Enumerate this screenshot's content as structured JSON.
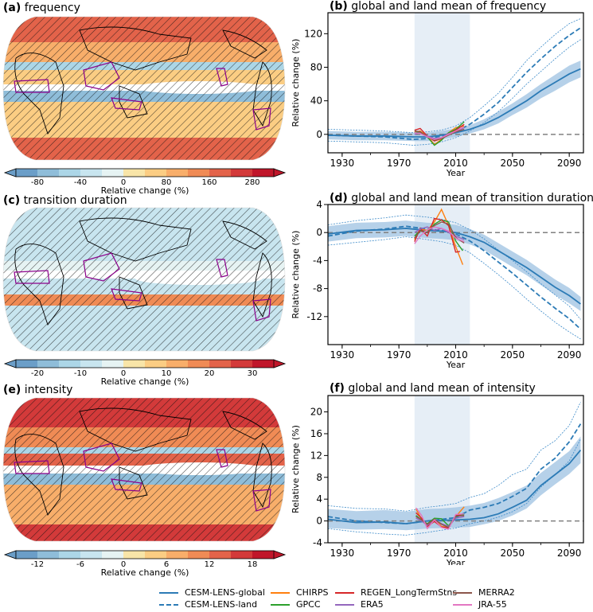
{
  "maps": [
    {
      "id": "a",
      "label": "(a)",
      "title": "frequency",
      "colorbar": {
        "ticks": [
          "-80",
          "-40",
          "0",
          "80",
          "160",
          "280"
        ],
        "label": "Relative change (%)"
      },
      "dominant": "warm"
    },
    {
      "id": "c",
      "label": "(c)",
      "title": "transition duration",
      "colorbar": {
        "ticks": [
          "-20",
          "-10",
          "0",
          "10",
          "20",
          "30"
        ],
        "label": "Relative change (%)"
      },
      "dominant": "cool"
    },
    {
      "id": "e",
      "label": "(e)",
      "title": "intensity",
      "colorbar": {
        "ticks": [
          "-12",
          "-6",
          "0",
          "6",
          "12",
          "18"
        ],
        "label": "Relative change (%)"
      },
      "dominant": "hot"
    }
  ],
  "colorbar_colors": [
    "#6b9ec8",
    "#8fbdd9",
    "#acd6e7",
    "#c8e5ef",
    "#e6f3f3",
    "#f8e5a8",
    "#fbcd83",
    "#f8ae6a",
    "#f08b55",
    "#e3634a",
    "#d33a3a",
    "#c0162a"
  ],
  "legend": [
    {
      "name": "CESM-LENS-global",
      "color": "#2c7bb6",
      "style": "solid"
    },
    {
      "name": "CESM-LENS-land",
      "color": "#2c7bb6",
      "style": "dashed"
    },
    {
      "name": "CHIRPS",
      "color": "#ff7f0e",
      "style": "solid"
    },
    {
      "name": "GPCC",
      "color": "#2ca02c",
      "style": "solid"
    },
    {
      "name": "REGEN_LongTermStns",
      "color": "#d62728",
      "style": "solid"
    },
    {
      "name": "ERA5",
      "color": "#9467bd",
      "style": "solid"
    },
    {
      "name": "MERRA2",
      "color": "#8c564b",
      "style": "solid"
    },
    {
      "name": "JRA-55",
      "color": "#e377c2",
      "style": "solid"
    }
  ],
  "chart_data": [
    {
      "type": "line",
      "panel": "(b)",
      "title": "global and land mean of frequency",
      "xlabel": "Year",
      "ylabel": "Relative change (%)",
      "xlim": [
        1920,
        2100
      ],
      "ylim": [
        -22,
        145
      ],
      "xticks": [
        1930,
        1970,
        2010,
        2050,
        2090
      ],
      "yticks": [
        0,
        40,
        80,
        120
      ],
      "shaded_period": [
        1981,
        2020
      ],
      "reference_line": 0,
      "x": [
        1920,
        1940,
        1960,
        1980,
        1990,
        2000,
        2010,
        2020,
        2030,
        2040,
        2050,
        2060,
        2070,
        2080,
        2090,
        2098
      ],
      "series": [
        {
          "name": "CESM-LENS-global",
          "values": [
            -1,
            -2,
            -2,
            -3,
            -3,
            -1,
            2,
            6,
            12,
            20,
            30,
            40,
            52,
            62,
            72,
            78
          ],
          "band_low": [
            -6,
            -7,
            -7,
            -8,
            -8,
            -6,
            -3,
            1,
            6,
            13,
            23,
            32,
            43,
            52,
            62,
            68
          ],
          "band_high": [
            4,
            3,
            3,
            2,
            2,
            4,
            7,
            11,
            18,
            27,
            37,
            48,
            60,
            71,
            82,
            88
          ]
        },
        {
          "name": "CESM-LENS-land",
          "values": [
            -1,
            -2,
            -3,
            -6,
            -5,
            -2,
            3,
            12,
            24,
            38,
            56,
            74,
            90,
            105,
            118,
            127
          ],
          "band_low": [
            -8,
            -9,
            -10,
            -13,
            -12,
            -9,
            -4,
            4,
            14,
            27,
            43,
            60,
            75,
            90,
            104,
            113
          ],
          "band_high": [
            6,
            5,
            4,
            2,
            3,
            5,
            10,
            20,
            34,
            49,
            68,
            88,
            104,
            119,
            132,
            138
          ]
        },
        {
          "name": "CHIRPS",
          "x": [
            1981,
            1985,
            1990,
            1995,
            2000,
            2005,
            2010,
            2016
          ],
          "values": [
            3,
            4,
            -2,
            -12,
            -6,
            2,
            8,
            10
          ]
        },
        {
          "name": "GPCC",
          "x": [
            1981,
            1985,
            1990,
            1995,
            2000,
            2005,
            2010,
            2016
          ],
          "values": [
            2,
            3,
            -3,
            -13,
            -7,
            2,
            6,
            15
          ]
        },
        {
          "name": "REGEN_LongTermStns",
          "x": [
            1981,
            1985,
            1990,
            1995,
            2000,
            2005,
            2010,
            2016
          ],
          "values": [
            5,
            7,
            -2,
            -8,
            -5,
            0,
            5,
            12
          ]
        },
        {
          "name": "ERA5",
          "x": [
            1981,
            1985,
            1990,
            1995,
            2000,
            2005,
            2010,
            2016
          ],
          "values": [
            0,
            2,
            -2,
            -5,
            -4,
            1,
            3,
            8
          ]
        },
        {
          "name": "MERRA2",
          "x": [
            1981,
            1985,
            1990,
            1995,
            2000,
            2005,
            2010,
            2016
          ],
          "values": [
            4,
            3,
            -3,
            -7,
            -5,
            -1,
            3,
            6
          ]
        },
        {
          "name": "JRA-55",
          "x": [
            1981,
            1985,
            1990,
            1995,
            2000,
            2005,
            2010,
            2016
          ],
          "values": [
            2,
            1,
            -3,
            -6,
            -4,
            0,
            4,
            9
          ]
        }
      ]
    },
    {
      "type": "line",
      "panel": "(d)",
      "title": "global and land mean of transition duration",
      "xlabel": "Year",
      "ylabel": "Relative change (%)",
      "xlim": [
        1920,
        2100
      ],
      "ylim": [
        -16,
        4
      ],
      "xticks": [
        1930,
        1970,
        2010,
        2050,
        2090
      ],
      "yticks": [
        4,
        0,
        -4,
        -8,
        -12
      ],
      "shaded_period": [
        1981,
        2020
      ],
      "reference_line": 0,
      "x": [
        1920,
        1940,
        1960,
        1975,
        1990,
        2000,
        2010,
        2020,
        2030,
        2040,
        2050,
        2060,
        2070,
        2080,
        2090,
        2098
      ],
      "series": [
        {
          "name": "CESM-LENS-global",
          "values": [
            -0.2,
            0.3,
            0.4,
            0.6,
            0.3,
            0.2,
            0,
            -0.6,
            -1.4,
            -2.6,
            -3.8,
            -5,
            -6.4,
            -7.8,
            -9,
            -10.2
          ],
          "band_low": [
            -1.3,
            -0.8,
            -0.7,
            -0.5,
            -0.8,
            -0.9,
            -1.1,
            -1.7,
            -2.5,
            -3.7,
            -4.9,
            -6.1,
            -7.5,
            -8.9,
            -10.1,
            -11.2
          ],
          "band_high": [
            0.9,
            1.4,
            1.5,
            1.7,
            1.4,
            1.3,
            1.1,
            0.5,
            -0.3,
            -1.5,
            -2.7,
            -3.9,
            -5.3,
            -6.7,
            -7.9,
            -9.2
          ]
        },
        {
          "name": "CESM-LENS-land",
          "values": [
            -0.5,
            0.2,
            0.5,
            0.9,
            0.5,
            0.3,
            -0.2,
            -1.2,
            -2.6,
            -4.2,
            -5.8,
            -7.5,
            -9.2,
            -10.8,
            -12.3,
            -13.8
          ],
          "band_low": [
            -1.8,
            -1.4,
            -1,
            -0.6,
            -1,
            -1.3,
            -1.8,
            -2.9,
            -4.4,
            -6,
            -7.7,
            -9.5,
            -11.2,
            -12.8,
            -14.2,
            -15.2
          ],
          "band_high": [
            1.1,
            1.7,
            2.1,
            2.5,
            2.2,
            1.9,
            1.4,
            0.4,
            -0.9,
            -2.5,
            -4,
            -5.6,
            -7.3,
            -8.9,
            -10.5,
            -12.4
          ]
        },
        {
          "name": "CHIRPS",
          "x": [
            1981,
            1985,
            1990,
            1995,
            2000,
            2005,
            2010,
            2015
          ],
          "values": [
            -1,
            0.5,
            0.3,
            1.5,
            3.3,
            1,
            -2,
            -4.6
          ]
        },
        {
          "name": "GPCC",
          "x": [
            1981,
            1985,
            1990,
            1995,
            2000,
            2005,
            2010,
            2015
          ],
          "values": [
            -0.5,
            0.3,
            0,
            1.2,
            1.8,
            1.5,
            -1.2,
            -2.6
          ]
        },
        {
          "name": "REGEN_LongTermStns",
          "x": [
            1981,
            1985,
            1990,
            1995,
            2000,
            2005,
            2010,
            2013
          ],
          "values": [
            -1.3,
            0.6,
            -0.5,
            2,
            1.8,
            1,
            -2.8,
            -2.7
          ]
        },
        {
          "name": "ERA5",
          "x": [
            1981,
            1985,
            1990,
            1995,
            2000,
            2005,
            2010,
            2016
          ],
          "values": [
            0,
            0.5,
            0.8,
            0.3,
            0.6,
            0,
            -0.5,
            -1
          ]
        },
        {
          "name": "MERRA2",
          "x": [
            1981,
            1985,
            1990,
            1995,
            2000,
            2005,
            2010,
            2016
          ],
          "values": [
            -0.8,
            0.2,
            0,
            1,
            1.5,
            1.2,
            -0.7,
            -1.5
          ]
        },
        {
          "name": "JRA-55",
          "x": [
            1981,
            1985,
            1990,
            1995,
            2000,
            2005,
            2010,
            2016
          ],
          "values": [
            -1.6,
            -0.5,
            0.4,
            0.8,
            0.6,
            0.2,
            -0.8,
            -1.3
          ]
        }
      ]
    },
    {
      "type": "line",
      "panel": "(f)",
      "title": "global and land mean of intensity",
      "xlabel": "Year",
      "ylabel": "Relative change (%)",
      "xlim": [
        1920,
        2100
      ],
      "ylim": [
        -4,
        23
      ],
      "xticks": [
        1930,
        1970,
        2010,
        2050,
        2090
      ],
      "yticks": [
        -4,
        0,
        4,
        8,
        12,
        16,
        20
      ],
      "shaded_period": [
        1981,
        2020
      ],
      "reference_line": 0,
      "x": [
        1920,
        1940,
        1960,
        1975,
        1990,
        2000,
        2010,
        2020,
        2030,
        2040,
        2050,
        2060,
        2070,
        2080,
        2090,
        2098
      ],
      "series": [
        {
          "name": "CESM-LENS-global",
          "values": [
            0.3,
            -0.3,
            -0.2,
            -0.5,
            0,
            0.1,
            0.2,
            0.3,
            0.6,
            1.3,
            2.5,
            3.8,
            6.5,
            8.5,
            10.5,
            13
          ],
          "band_low": [
            -1.3,
            -1.6,
            -1.5,
            -1.7,
            -1.4,
            -1.3,
            -1.2,
            -1.1,
            -0.6,
            0,
            1,
            2.3,
            4.7,
            6.7,
            8.6,
            10.6
          ],
          "band_high": [
            2.2,
            1.8,
            2,
            1.7,
            2.2,
            2.3,
            2.5,
            2.8,
            3.3,
            4.2,
            5.3,
            6.5,
            8.8,
            10.8,
            12.8,
            15.5
          ]
        },
        {
          "name": "CESM-LENS-land",
          "values": [
            0.8,
            0,
            -0.3,
            -0.5,
            0,
            0.3,
            0.6,
            2,
            2.5,
            3.2,
            4.5,
            6,
            9.5,
            11.5,
            14.5,
            17.8
          ],
          "band_low": [
            -1.4,
            -2,
            -2.4,
            -2.6,
            -2.1,
            -1.7,
            -1.3,
            -0.5,
            0,
            0.7,
            1.7,
            3.2,
            6.2,
            8.5,
            11,
            15
          ],
          "band_high": [
            2.8,
            2.3,
            2.2,
            1.8,
            2.5,
            2.8,
            3.2,
            4.3,
            5,
            6.5,
            8.5,
            9.5,
            13,
            14.7,
            17.5,
            21.8
          ]
        },
        {
          "name": "CHIRPS",
          "x": [
            1982,
            1986,
            1990,
            1995,
            2000,
            2005,
            2010,
            2016
          ],
          "values": [
            2.2,
            0.3,
            -1,
            0.4,
            -1,
            -1.2,
            0.8,
            2.6
          ]
        },
        {
          "name": "GPCC",
          "x": [
            1982,
            1986,
            1990,
            1995,
            2000,
            2005,
            2010,
            2016
          ],
          "values": [
            1,
            0.2,
            -0.5,
            0.5,
            0.4,
            -0.9,
            0.8,
            1.2
          ]
        },
        {
          "name": "REGEN_LongTermStns",
          "x": [
            1982,
            1986,
            1990,
            1995,
            2000,
            2005,
            2010,
            2014
          ],
          "values": [
            1.5,
            0.5,
            -1,
            -0.1,
            -1.1,
            -1.3,
            1,
            1.2
          ]
        },
        {
          "name": "ERA5",
          "x": [
            1982,
            1986,
            1990,
            1995,
            2000,
            2005,
            2010,
            2016
          ],
          "values": [
            0.5,
            0,
            -0.8,
            0.2,
            -0.5,
            -1,
            0.5,
            0.8
          ]
        },
        {
          "name": "MERRA2",
          "x": [
            1982,
            1986,
            1990,
            1995,
            2000,
            2005,
            2010,
            2016
          ],
          "values": [
            0.8,
            0.2,
            -0.6,
            0.3,
            -0.6,
            -1.2,
            0.9,
            1
          ]
        },
        {
          "name": "JRA-55",
          "x": [
            1982,
            1986,
            1990,
            1995,
            2000,
            2005,
            2010,
            2016
          ],
          "values": [
            2.4,
            1,
            -1.4,
            0.2,
            -1.2,
            -1.5,
            1.2,
            1.3
          ]
        }
      ]
    }
  ]
}
